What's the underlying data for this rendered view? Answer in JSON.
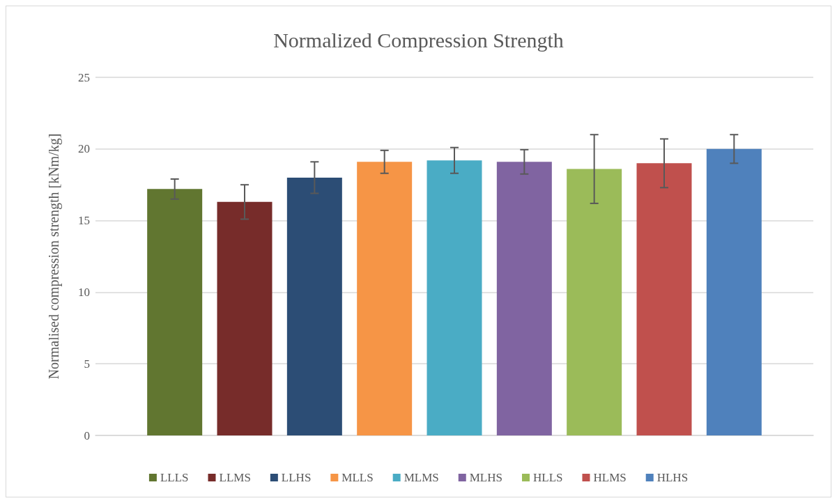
{
  "chart_data": {
    "type": "bar",
    "title": "Normalized Compression Strength",
    "ylabel": "Normalised compression strength [kNm/kg]",
    "categories": [
      null
    ],
    "series": [
      {
        "name": "LLLS",
        "color": "#617630",
        "values": [
          17.2
        ],
        "errors": [
          0.7
        ]
      },
      {
        "name": "LLMS",
        "color": "#772c2a",
        "values": [
          16.3
        ],
        "errors": [
          1.2
        ]
      },
      {
        "name": "LLHS",
        "color": "#2c4d75",
        "values": [
          18.0
        ],
        "errors": [
          1.1
        ]
      },
      {
        "name": "MLLS",
        "color": "#f69546",
        "values": [
          19.1
        ],
        "errors": [
          0.8
        ]
      },
      {
        "name": "MLMS",
        "color": "#4aacc5",
        "values": [
          19.2
        ],
        "errors": [
          0.9
        ]
      },
      {
        "name": "MLHS",
        "color": "#8064a1",
        "values": [
          19.1
        ],
        "errors": [
          0.85
        ]
      },
      {
        "name": "HLLS",
        "color": "#9bbb59",
        "values": [
          18.6
        ],
        "errors": [
          2.4
        ]
      },
      {
        "name": "HLMS",
        "color": "#c0504d",
        "values": [
          19.0
        ],
        "errors": [
          1.7
        ]
      },
      {
        "name": "HLHS",
        "color": "#4f81bc",
        "values": [
          20.0
        ],
        "errors": [
          1.0
        ]
      }
    ],
    "ylim": [
      0,
      25
    ],
    "yticks": [
      0,
      5,
      10,
      15,
      20,
      25
    ],
    "grid": "y",
    "legend": "bottom"
  }
}
